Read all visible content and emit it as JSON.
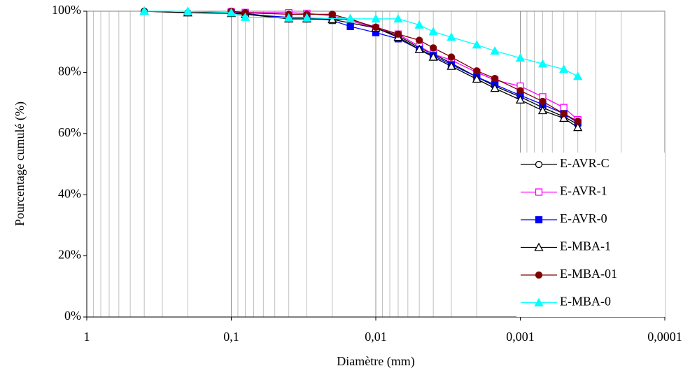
{
  "chart_data": {
    "type": "line",
    "x_label": "Diamètre (mm)",
    "y_label": "Pourcentage cumulé (%)",
    "x_log": true,
    "x_grid": true,
    "x_minor_grid": true,
    "legend_position": "lower right",
    "xlim": [
      1,
      0.0001
    ],
    "xticks": [
      1,
      {
        "value": 0.1,
        "label": "0,1"
      },
      {
        "value": 0.01,
        "label": "0,01"
      },
      {
        "value": 0.001,
        "label": "0,001"
      },
      {
        "value": 0.0001,
        "label": "0,0001"
      }
    ],
    "ylim": [
      0,
      100
    ],
    "yticks": [
      {
        "value": 0,
        "label": "0%"
      },
      {
        "value": 20,
        "label": "20%"
      },
      {
        "value": 40,
        "label": "40%"
      },
      {
        "value": 60,
        "label": "60%"
      },
      {
        "value": 80,
        "label": "80%"
      },
      {
        "value": 100,
        "label": "100%"
      }
    ],
    "series": [
      {
        "name": "E-AVR-C",
        "color": "#000000",
        "marker": "circle",
        "marker_fill": false,
        "x": [
          0.4,
          0.2,
          0.1,
          0.08,
          0.04,
          0.03,
          0.02,
          0.01,
          0.007,
          0.005,
          0.004,
          0.003,
          0.002,
          0.0015,
          0.001,
          0.0007,
          0.0005,
          0.0004
        ],
        "values": [
          100,
          99.5,
          99.5,
          99.3,
          97.5,
          97.5,
          97.3,
          94.5,
          92,
          88,
          86,
          83,
          78.5,
          75.5,
          72,
          68.5,
          65.5,
          63
        ]
      },
      {
        "name": "E-AVR-1",
        "color": "#ff00ff",
        "marker": "square",
        "marker_fill": false,
        "x": [
          0.1,
          0.08,
          0.04,
          0.03,
          0.02,
          0.01,
          0.007,
          0.005,
          0.004,
          0.003,
          0.002,
          0.0015,
          0.001,
          0.0007,
          0.0005,
          0.0004
        ],
        "values": [
          99.8,
          99.6,
          99.5,
          99.3,
          98.5,
          94.5,
          92.5,
          88.5,
          86,
          84,
          80,
          77.5,
          75.5,
          72,
          68.5,
          64.5
        ]
      },
      {
        "name": "E-AVR-0",
        "color": "#0000ff",
        "marker": "square",
        "marker_fill": true,
        "x": [
          0.1,
          0.08,
          0.04,
          0.03,
          0.02,
          0.015,
          0.01,
          0.007,
          0.005,
          0.004,
          0.003,
          0.002,
          0.0015,
          0.001,
          0.0007,
          0.0005,
          0.0004
        ],
        "values": [
          99.5,
          99,
          98,
          98,
          97,
          95,
          93,
          91,
          87.5,
          85.5,
          82.5,
          78.5,
          76,
          72.5,
          69.5,
          66.5,
          63.5
        ]
      },
      {
        "name": "E-MBA-1",
        "color": "#000000",
        "marker": "triangle",
        "marker_fill": false,
        "x": [
          0.4,
          0.2,
          0.1,
          0.08,
          0.04,
          0.03,
          0.02,
          0.015,
          0.01,
          0.007,
          0.005,
          0.004,
          0.003,
          0.002,
          0.0015,
          0.001,
          0.0007,
          0.0005,
          0.0004
        ],
        "values": [
          100,
          99.5,
          99.3,
          99,
          97.5,
          97.5,
          97.3,
          97.5,
          94.5,
          91.5,
          87.5,
          85,
          82,
          77.8,
          74.8,
          71,
          67.5,
          65,
          62
        ]
      },
      {
        "name": "E-MBA-01",
        "color": "#800000",
        "marker": "circle",
        "marker_fill": true,
        "x": [
          0.1,
          0.08,
          0.04,
          0.03,
          0.02,
          0.01,
          0.007,
          0.005,
          0.004,
          0.003,
          0.002,
          0.0015,
          0.001,
          0.0007,
          0.0005,
          0.0004
        ],
        "values": [
          100,
          99.5,
          99,
          99,
          99,
          94.8,
          92.5,
          90.5,
          88,
          85,
          80.5,
          78,
          74,
          70.5,
          66.5,
          64
        ]
      },
      {
        "name": "E-MBA-0",
        "color": "#00ffff",
        "marker": "triangle",
        "marker_fill": true,
        "x": [
          0.4,
          0.2,
          0.1,
          0.08,
          0.04,
          0.03,
          0.015,
          0.01,
          0.007,
          0.005,
          0.004,
          0.003,
          0.002,
          0.0015,
          0.001,
          0.0007,
          0.0005,
          0.0004
        ],
        "values": [
          100,
          100,
          99.5,
          98,
          97.8,
          97.8,
          97.5,
          97.5,
          97.5,
          95.5,
          93.3,
          91.5,
          89,
          87,
          84.7,
          82.8,
          81,
          78.7
        ]
      }
    ]
  }
}
